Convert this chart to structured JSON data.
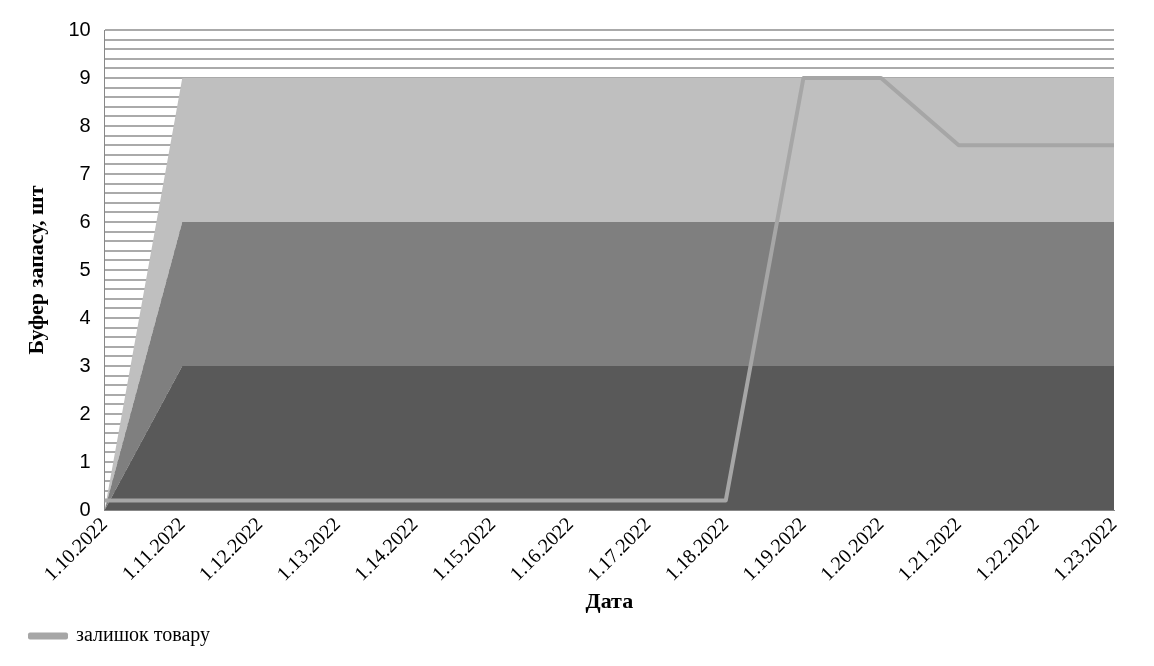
{
  "chart_data": {
    "type": "area",
    "xlabel": "Дата",
    "ylabel": "Буфер запасу, шт",
    "categories": [
      "1.10.2022",
      "1.11.2022",
      "1.12.2022",
      "1.13.2022",
      "1.14.2022",
      "1.15.2022",
      "1.16.2022",
      "1.17.2022",
      "1.18.2022",
      "1.19.2022",
      "1.20.2022",
      "1.21.2022",
      "1.22.2022",
      "1.23.2022"
    ],
    "stacked": true,
    "marker": "none",
    "grid": "y",
    "legend": "bottom",
    "series": [
      {
        "color": "#595959",
        "values": [
          0,
          3,
          3,
          3,
          3,
          3,
          3,
          3,
          3,
          3,
          3,
          3,
          3,
          3
        ]
      },
      {
        "color": "#7f7f7f",
        "values": [
          0,
          3,
          3,
          3,
          3,
          3,
          3,
          3,
          3,
          3,
          3,
          3,
          3,
          3
        ]
      },
      {
        "color": "#bfbfbf",
        "values": [
          0,
          3,
          3,
          3,
          3,
          3,
          3,
          3,
          3,
          3,
          3,
          3,
          3,
          3
        ]
      },
      {
        "type": "line",
        "name": "залишок товару",
        "color": "#a6a6a6",
        "values": [
          0.2,
          0.2,
          0.2,
          0.2,
          0.2,
          0.2,
          0.2,
          0.2,
          0.2,
          9,
          9,
          7.6,
          7.6,
          7.6
        ]
      }
    ],
    "ylim": [
      0,
      10
    ],
    "yticks": [
      0,
      {
        "value": 0.4,
        "label": null
      },
      {
        "value": 0.6,
        "label": null
      },
      {
        "value": 0.8,
        "label": null
      },
      1,
      {
        "value": 1.2,
        "label": null
      },
      {
        "value": 1.4,
        "label": null
      },
      {
        "value": 1.6,
        "label": null
      },
      {
        "value": 1.8,
        "label": null
      },
      2,
      {
        "value": 2.2,
        "label": null
      },
      {
        "value": 2.4,
        "label": null
      },
      {
        "value": 2.6,
        "label": null
      },
      {
        "value": 2.8,
        "label": null
      },
      3,
      {
        "value": 3.2,
        "label": null
      },
      {
        "value": 3.4,
        "label": null
      },
      {
        "value": 3.6,
        "label": null
      },
      {
        "value": 3.8,
        "label": null
      },
      4,
      {
        "value": 4.2,
        "label": null
      },
      {
        "value": 4.4,
        "label": null
      },
      {
        "value": 4.6,
        "label": null
      },
      {
        "value": 4.8,
        "label": null
      },
      5,
      {
        "value": 5.2,
        "label": null
      },
      {
        "value": 5.4,
        "label": null
      },
      {
        "value": 5.6,
        "label": null
      },
      {
        "value": 5.8,
        "label": null
      },
      6,
      {
        "value": 6.2,
        "label": null
      },
      {
        "value": 6.4,
        "label": null
      },
      {
        "value": 6.6,
        "label": null
      },
      {
        "value": 6.8,
        "label": null
      },
      7,
      {
        "value": 7.2,
        "label": null
      },
      {
        "value": 7.4,
        "label": null
      },
      {
        "value": 7.6,
        "label": null
      },
      {
        "value": 7.8,
        "label": null
      },
      8,
      {
        "value": 8.2,
        "label": null
      },
      {
        "value": 8.4,
        "label": null
      },
      {
        "value": 8.6,
        "label": null
      },
      {
        "value": 8.8,
        "label": null
      },
      9,
      {
        "value": 9.2,
        "label": null
      },
      {
        "value": 9.4,
        "label": null
      },
      {
        "value": 9.6,
        "label": null
      },
      {
        "value": 9.8,
        "label": null
      },
      10
    ]
  }
}
